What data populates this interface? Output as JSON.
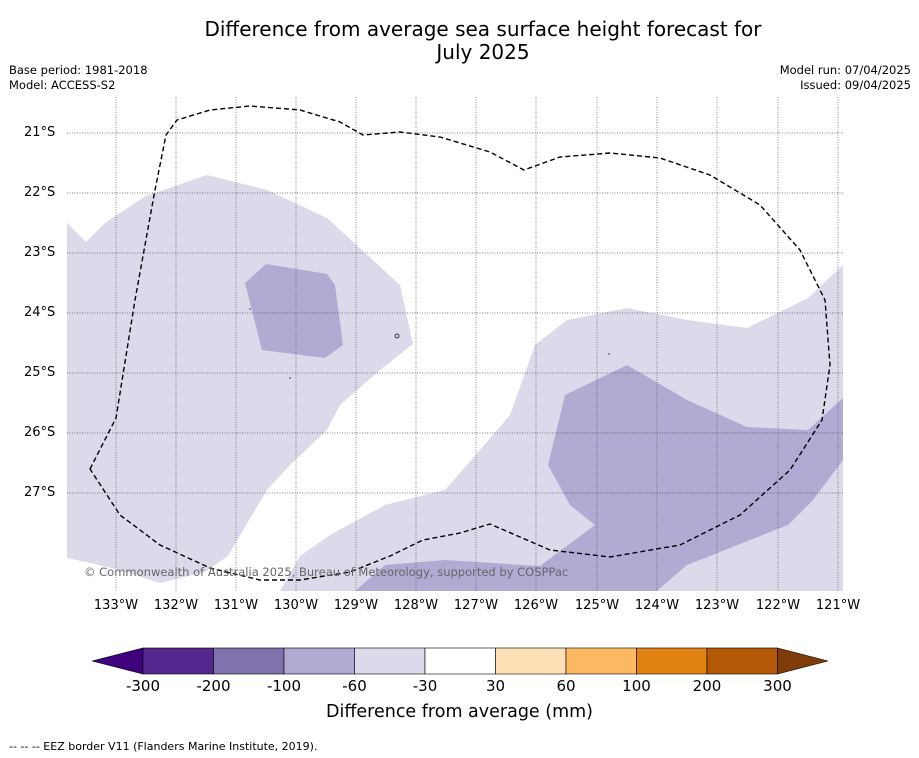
{
  "title": "Difference from average sea surface height forecast for July 2025",
  "title_line1": "Difference from average sea surface height forecast for",
  "title_line2": "July 2025",
  "base_period": "Base period: 1981-2018",
  "model": "Model: ACCESS-S2",
  "model_run": "Model run: 07/04/2025",
  "issued": "Issued: 09/04/2025",
  "copyright": "© Commonwealth of Australia 2025, Bureau of Meteorology, supported by COSPPac",
  "map": {
    "lat_labels": [
      "21°S",
      "22°S",
      "23°S",
      "24°S",
      "25°S",
      "26°S",
      "27°S"
    ],
    "lon_labels": [
      "133°W",
      "132°W",
      "131°W",
      "130°W",
      "129°W",
      "128°W",
      "127°W",
      "126°W",
      "125°W",
      "124°W",
      "123°W",
      "122°W",
      "121°W"
    ],
    "regions": [
      {
        "category": "-60 to -30",
        "color": "#dadaeb"
      },
      {
        "category": "-100 to -60",
        "color": "#b1aad3"
      }
    ],
    "eez_border_style": "dashed black"
  },
  "colorbar": {
    "label": "Difference from average (mm)",
    "ticks": [
      "-300",
      "-200",
      "-100",
      "-60",
      "-30",
      "30",
      "60",
      "100",
      "200",
      "300"
    ],
    "colors": [
      "#54278f",
      "#7f72ad",
      "#b1aad3",
      "#dadaeb",
      "#ffffff",
      "#fee0b6",
      "#fdb863",
      "#e08214",
      "#b35806"
    ],
    "under_color": "#3f007d",
    "over_color": "#7f3b08"
  },
  "footer": "--  --  -- EEZ border V11 (Flanders Marine Institute, 2019)."
}
